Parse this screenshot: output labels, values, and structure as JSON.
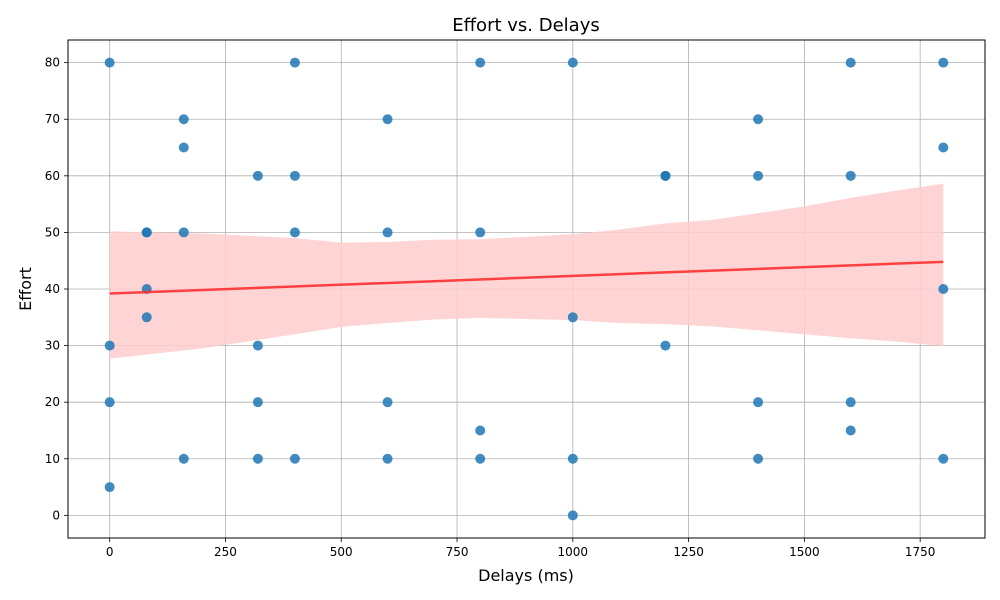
{
  "chart_data": {
    "type": "scatter",
    "title": "Effort vs. Delays",
    "xlabel": "Delays (ms)",
    "ylabel": "Effort",
    "xlim": [
      -90,
      1890
    ],
    "ylim": [
      -4,
      84
    ],
    "xticks": [
      0,
      250,
      500,
      750,
      1000,
      1250,
      1500,
      1750
    ],
    "yticks": [
      0,
      10,
      20,
      30,
      40,
      50,
      60,
      70,
      80
    ],
    "grid": true,
    "point_color": "#1f77b4",
    "regression_color": "#ff3030",
    "ci_color": "#ffcccc",
    "points": [
      {
        "x": 0,
        "y": 80
      },
      {
        "x": 0,
        "y": 30
      },
      {
        "x": 0,
        "y": 20
      },
      {
        "x": 0,
        "y": 5
      },
      {
        "x": 80,
        "y": 50
      },
      {
        "x": 80,
        "y": 50
      },
      {
        "x": 80,
        "y": 40
      },
      {
        "x": 80,
        "y": 35
      },
      {
        "x": 160,
        "y": 70
      },
      {
        "x": 160,
        "y": 65
      },
      {
        "x": 160,
        "y": 50
      },
      {
        "x": 160,
        "y": 10
      },
      {
        "x": 320,
        "y": 60
      },
      {
        "x": 320,
        "y": 30
      },
      {
        "x": 320,
        "y": 20
      },
      {
        "x": 320,
        "y": 10
      },
      {
        "x": 400,
        "y": 80
      },
      {
        "x": 400,
        "y": 60
      },
      {
        "x": 400,
        "y": 50
      },
      {
        "x": 400,
        "y": 10
      },
      {
        "x": 600,
        "y": 70
      },
      {
        "x": 600,
        "y": 50
      },
      {
        "x": 600,
        "y": 20
      },
      {
        "x": 600,
        "y": 10
      },
      {
        "x": 800,
        "y": 80
      },
      {
        "x": 800,
        "y": 50
      },
      {
        "x": 800,
        "y": 15
      },
      {
        "x": 800,
        "y": 10
      },
      {
        "x": 1000,
        "y": 80
      },
      {
        "x": 1000,
        "y": 35
      },
      {
        "x": 1000,
        "y": 10
      },
      {
        "x": 1000,
        "y": 0
      },
      {
        "x": 1200,
        "y": 60
      },
      {
        "x": 1200,
        "y": 60
      },
      {
        "x": 1200,
        "y": 30
      },
      {
        "x": 1400,
        "y": 70
      },
      {
        "x": 1400,
        "y": 60
      },
      {
        "x": 1400,
        "y": 20
      },
      {
        "x": 1400,
        "y": 10
      },
      {
        "x": 1600,
        "y": 80
      },
      {
        "x": 1600,
        "y": 60
      },
      {
        "x": 1600,
        "y": 20
      },
      {
        "x": 1600,
        "y": 15
      },
      {
        "x": 1800,
        "y": 80
      },
      {
        "x": 1800,
        "y": 65
      },
      {
        "x": 1800,
        "y": 40
      },
      {
        "x": 1800,
        "y": 10
      }
    ],
    "regression": {
      "x": [
        0,
        1800
      ],
      "y": [
        39.2,
        44.8
      ]
    },
    "ci_band": {
      "x": [
        0,
        200,
        400,
        500,
        600,
        700,
        800,
        900,
        1000,
        1100,
        1200,
        1300,
        1400,
        1500,
        1600,
        1700,
        1800
      ],
      "upper": [
        50.2,
        49.8,
        49,
        48.2,
        48.3,
        48.7,
        48.8,
        49.2,
        49.7,
        50.5,
        51.6,
        52.2,
        53.4,
        54.6,
        56.1,
        57.4,
        58.6
      ],
      "lower": [
        27.7,
        29.5,
        32,
        33.3,
        34,
        34.6,
        34.9,
        34.7,
        34.5,
        34,
        33.8,
        33.4,
        32.7,
        32,
        31.3,
        30.7,
        29.9
      ]
    }
  }
}
